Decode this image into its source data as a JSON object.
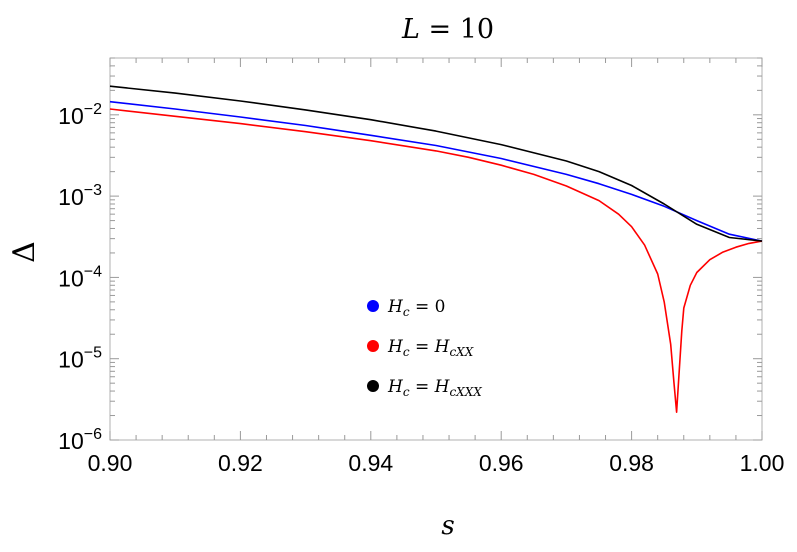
{
  "chart_data": {
    "type": "line",
    "title": "L = 10",
    "title_var": "L",
    "title_value": "10",
    "xlabel": "s",
    "ylabel": "Δ",
    "xlim": [
      0.9,
      1.0
    ],
    "ylim": [
      1e-06,
      0.05
    ],
    "y_scale": "log",
    "grid": false,
    "legend_position": "bottom-center",
    "x_ticks": [
      "0.90",
      "0.92",
      "0.94",
      "0.96",
      "0.98",
      "1.00"
    ],
    "x_tick_values": [
      0.9,
      0.92,
      0.94,
      0.96,
      0.98,
      1.0
    ],
    "y_ticks": [
      {
        "base": "10",
        "exp": "-2",
        "value": 0.01
      },
      {
        "base": "10",
        "exp": "-3",
        "value": 0.001
      },
      {
        "base": "10",
        "exp": "-4",
        "value": 0.0001
      },
      {
        "base": "10",
        "exp": "-5",
        "value": 1e-05
      },
      {
        "base": "10",
        "exp": "-6",
        "value": 1e-06
      }
    ],
    "series": [
      {
        "name": "H_c = 0",
        "legend_lhs": "H",
        "legend_lhs_sub": "c",
        "legend_rhs": "0",
        "legend_rhs_sub": "",
        "color": "#0000ff",
        "style": "line",
        "x": [
          0.9,
          0.91,
          0.92,
          0.93,
          0.94,
          0.95,
          0.96,
          0.97,
          0.975,
          0.98,
          0.985,
          0.99,
          0.995,
          1.0
        ],
        "y": [
          0.0145,
          0.0118,
          0.0094,
          0.0074,
          0.0056,
          0.0042,
          0.0029,
          0.00185,
          0.00142,
          0.00105,
          0.00075,
          0.0005,
          0.00034,
          0.00028
        ]
      },
      {
        "name": "H_c = H_cXX",
        "legend_lhs": "H",
        "legend_lhs_sub": "c",
        "legend_rhs": "H",
        "legend_rhs_sub": "cXX",
        "color": "#ff0000",
        "style": "line",
        "x": [
          0.9,
          0.91,
          0.92,
          0.93,
          0.94,
          0.95,
          0.955,
          0.96,
          0.965,
          0.97,
          0.975,
          0.978,
          0.98,
          0.982,
          0.984,
          0.985,
          0.986,
          0.9865,
          0.9869,
          0.9873,
          0.9877,
          0.988,
          0.989,
          0.99,
          0.992,
          0.994,
          0.996,
          0.998,
          1.0
        ],
        "y": [
          0.0118,
          0.0096,
          0.0078,
          0.0062,
          0.0048,
          0.0036,
          0.003,
          0.0024,
          0.00185,
          0.00133,
          0.00088,
          0.0006,
          0.00042,
          0.00025,
          0.00011,
          5e-05,
          1.5e-05,
          5e-06,
          2.2e-06,
          7e-06,
          2.2e-05,
          4.2e-05,
          8e-05,
          0.000115,
          0.000165,
          0.000205,
          0.000235,
          0.000262,
          0.00028
        ]
      },
      {
        "name": "H_c = H_cXXX",
        "legend_lhs": "H",
        "legend_lhs_sub": "c",
        "legend_rhs": "H",
        "legend_rhs_sub": "cXXX",
        "color": "#000000",
        "style": "line",
        "x": [
          0.9,
          0.91,
          0.92,
          0.93,
          0.94,
          0.95,
          0.96,
          0.97,
          0.975,
          0.98,
          0.985,
          0.99,
          0.995,
          1.0
        ],
        "y": [
          0.0225,
          0.0185,
          0.0148,
          0.0115,
          0.0087,
          0.0063,
          0.0043,
          0.0027,
          0.002,
          0.00135,
          0.0008,
          0.00045,
          0.00031,
          0.00028
        ]
      }
    ]
  }
}
